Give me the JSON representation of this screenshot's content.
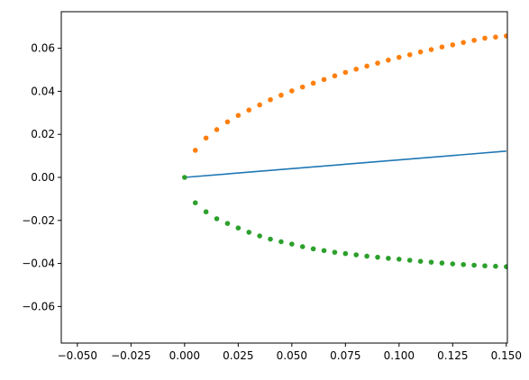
{
  "chart_data": {
    "type": "scatter",
    "title": "",
    "xlabel": "",
    "ylabel": "",
    "xlim": [
      -0.0575,
      0.1505
    ],
    "ylim": [
      -0.077,
      0.077
    ],
    "grid": false,
    "x_ticks": [
      -0.05,
      -0.025,
      0.0,
      0.025,
      0.05,
      0.075,
      0.1,
      0.125,
      0.15
    ],
    "x_tick_labels": [
      "−0.050",
      "−0.025",
      "0.000",
      "0.025",
      "0.050",
      "0.075",
      "0.100",
      "0.125",
      "0.150"
    ],
    "y_ticks": [
      -0.06,
      -0.04,
      -0.02,
      0.0,
      0.02,
      0.04,
      0.06
    ],
    "y_tick_labels": [
      "−0.06",
      "−0.04",
      "−0.02",
      "0.00",
      "0.02",
      "0.04",
      "0.06"
    ],
    "series": [
      {
        "style": "line",
        "color": "#1f77b4",
        "points": [
          [
            0.0,
            0.0
          ],
          [
            0.15,
            0.0122
          ]
        ]
      },
      {
        "style": "dots",
        "color": "#ff7f0e",
        "points": [
          [
            0.005,
            0.0126
          ],
          [
            0.01,
            0.0183
          ],
          [
            0.015,
            0.0222
          ],
          [
            0.02,
            0.0258
          ],
          [
            0.025,
            0.0288
          ],
          [
            0.03,
            0.0313
          ],
          [
            0.035,
            0.0337
          ],
          [
            0.04,
            0.0361
          ],
          [
            0.045,
            0.0382
          ],
          [
            0.05,
            0.0402
          ],
          [
            0.055,
            0.042
          ],
          [
            0.06,
            0.0438
          ],
          [
            0.065,
            0.0455
          ],
          [
            0.07,
            0.0472
          ],
          [
            0.075,
            0.0488
          ],
          [
            0.08,
            0.0503
          ],
          [
            0.085,
            0.0517
          ],
          [
            0.09,
            0.0531
          ],
          [
            0.095,
            0.0545
          ],
          [
            0.1,
            0.0558
          ],
          [
            0.105,
            0.057
          ],
          [
            0.11,
            0.0583
          ],
          [
            0.115,
            0.0594
          ],
          [
            0.12,
            0.0606
          ],
          [
            0.125,
            0.0616
          ],
          [
            0.13,
            0.0627
          ],
          [
            0.135,
            0.0637
          ],
          [
            0.14,
            0.0647
          ],
          [
            0.145,
            0.0652
          ],
          [
            0.15,
            0.0657
          ]
        ]
      },
      {
        "style": "dots",
        "color": "#2ca02c",
        "points": [
          [
            0.0,
            0.0
          ],
          [
            0.005,
            -0.0118
          ],
          [
            0.01,
            -0.016
          ],
          [
            0.015,
            -0.0192
          ],
          [
            0.02,
            -0.0214
          ],
          [
            0.025,
            -0.0235
          ],
          [
            0.03,
            -0.0255
          ],
          [
            0.035,
            -0.0272
          ],
          [
            0.04,
            -0.0287
          ],
          [
            0.045,
            -0.0299
          ],
          [
            0.05,
            -0.031
          ],
          [
            0.055,
            -0.0322
          ],
          [
            0.06,
            -0.0332
          ],
          [
            0.065,
            -0.034
          ],
          [
            0.07,
            -0.0348
          ],
          [
            0.075,
            -0.0354
          ],
          [
            0.08,
            -0.036
          ],
          [
            0.085,
            -0.0366
          ],
          [
            0.09,
            -0.0371
          ],
          [
            0.095,
            -0.0376
          ],
          [
            0.1,
            -0.038
          ],
          [
            0.105,
            -0.0385
          ],
          [
            0.11,
            -0.039
          ],
          [
            0.115,
            -0.0394
          ],
          [
            0.12,
            -0.0398
          ],
          [
            0.125,
            -0.0402
          ],
          [
            0.13,
            -0.0405
          ],
          [
            0.135,
            -0.0408
          ],
          [
            0.14,
            -0.0411
          ],
          [
            0.145,
            -0.0413
          ],
          [
            0.15,
            -0.0415
          ]
        ]
      }
    ]
  }
}
